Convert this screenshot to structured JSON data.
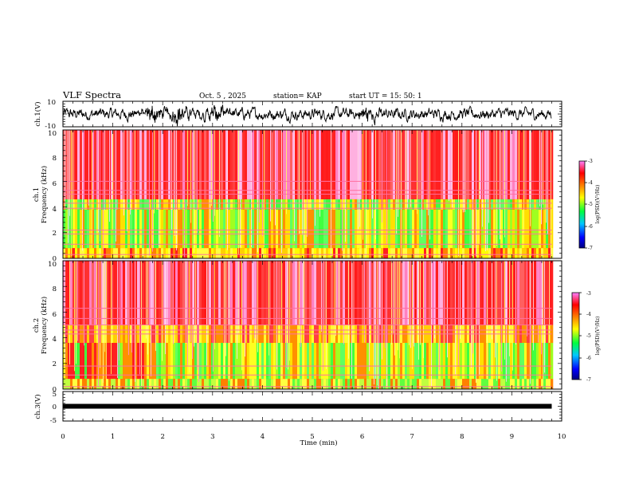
{
  "header": {
    "title": "VLF Spectra",
    "date": "Oct. 5 , 2025",
    "station": "station= KAP",
    "start": "start  UT =   15: 50: 1"
  },
  "chart_data": [
    {
      "type": "line",
      "name": "ch1-waveform",
      "ylabel": "ch.1(V)",
      "ylim": [
        -10,
        10
      ],
      "ytick_labels": [
        "10",
        "-10"
      ],
      "xlim": [
        0,
        10
      ],
      "xlabel": "",
      "x_end": 9.8,
      "color": "#000000",
      "description_values": {
        "baseline_mean": 0,
        "typical_amplitude": 5,
        "burst_times_min": [
          1.8,
          2.3,
          3.1,
          6.1
        ]
      }
    },
    {
      "type": "heatmap",
      "name": "ch1-spectrogram",
      "ylabel_line1": "ch.1",
      "ylabel_line2": "Frequency  (kHz)",
      "xlim": [
        0,
        10
      ],
      "ylim": [
        0,
        10
      ],
      "x_end": 9.8,
      "yticks": [
        0,
        2,
        4,
        6,
        8,
        10
      ],
      "ytick_labels": [
        "0",
        "2",
        "4",
        "6",
        "8",
        "10"
      ],
      "colorbar": {
        "label": "log(PSD)(V²/Hz)",
        "range": [
          -7,
          -3
        ],
        "tick_labels": [
          "-3",
          "-4",
          "-5",
          "-6",
          "-7"
        ],
        "colors": [
          "#000080",
          "#0000ff",
          "#00c8ff",
          "#00ff40",
          "#ffff00",
          "#ff8000",
          "#ff0000",
          "#ff80ff"
        ]
      },
      "bands": [
        {
          "f_low": 0.0,
          "f_high": 0.8,
          "level": "yellow-red"
        },
        {
          "f_low": 0.8,
          "f_high": 3.8,
          "level": "green-yellow"
        },
        {
          "f_low": 3.8,
          "f_high": 4.6,
          "level": "green-yellow"
        },
        {
          "f_low": 4.6,
          "f_high": 10.0,
          "level": "red-pink"
        }
      ],
      "horizontal_lines_khz": [
        0.3,
        1.1,
        1.9,
        2.2,
        3.9,
        4.3,
        5.0,
        5.3,
        6.0
      ]
    },
    {
      "type": "heatmap",
      "name": "ch2-spectrogram",
      "ylabel_line1": "ch.2",
      "ylabel_line2": "Frequency  (kHz)",
      "xlim": [
        0,
        10
      ],
      "ylim": [
        0,
        10
      ],
      "x_end": 9.8,
      "yticks": [
        0,
        2,
        4,
        6,
        8,
        10
      ],
      "ytick_labels": [
        "0",
        "2",
        "4",
        "6",
        "8",
        "10"
      ],
      "colorbar": {
        "label": "log(PSD)(V²/Hz)",
        "range": [
          -7,
          -3
        ],
        "tick_labels": [
          "-3",
          "-4",
          "-5",
          "-6",
          "-7"
        ],
        "colors": [
          "#000080",
          "#0000ff",
          "#00c8ff",
          "#00ff40",
          "#ffff00",
          "#ff8000",
          "#ff0000",
          "#ff80ff"
        ]
      },
      "bands": [
        {
          "f_low": 0.0,
          "f_high": 0.8,
          "level": "yellow-green"
        },
        {
          "f_low": 0.8,
          "f_high": 3.6,
          "level": "green-yellow"
        },
        {
          "f_low": 3.6,
          "f_high": 5.0,
          "level": "yellow-orange"
        },
        {
          "f_low": 5.0,
          "f_high": 10.0,
          "level": "red-pink"
        }
      ],
      "red_segment_until_min": 1.8,
      "horizontal_lines_khz": [
        0.2,
        1.1,
        1.8,
        4.3,
        4.6,
        5.0,
        5.5,
        6.3
      ]
    },
    {
      "type": "line",
      "name": "ch3-waveform",
      "ylabel": "ch.3(V)",
      "ylim": [
        -5,
        5
      ],
      "ytick_labels": [
        "5",
        "0",
        "-5"
      ],
      "xlim": [
        0,
        10
      ],
      "x_end": 9.8,
      "constant_value": 0,
      "xlabel": "Time  (min)",
      "xticks": [
        0,
        1,
        2,
        3,
        4,
        5,
        6,
        7,
        8,
        9,
        10
      ],
      "xtick_labels": [
        "0",
        "1",
        "2",
        "3",
        "4",
        "5",
        "6",
        "7",
        "8",
        "9",
        "10"
      ]
    }
  ]
}
